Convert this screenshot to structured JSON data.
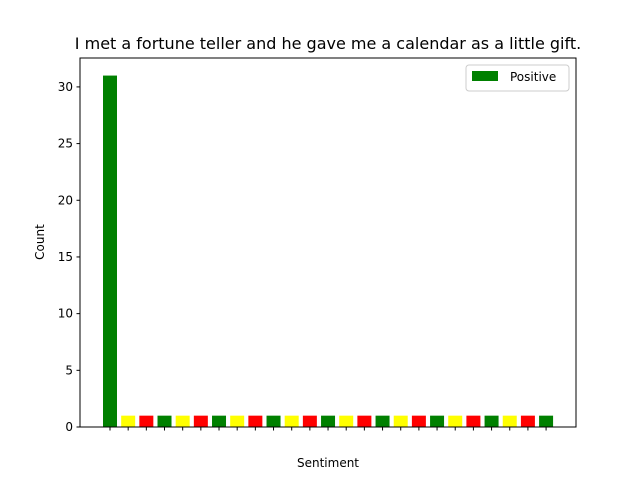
{
  "chart_data": {
    "type": "bar",
    "title": "I met a fortune teller and he gave me a calendar as a little gift.",
    "xlabel": "Sentiment",
    "ylabel": "Count",
    "ylim": [
      0,
      32.55
    ],
    "yticks": [
      0,
      5,
      10,
      15,
      20,
      25,
      30
    ],
    "grid": false,
    "legend": {
      "placement": "top-right",
      "entries": [
        {
          "label": "Positive",
          "color": "#008000"
        }
      ]
    },
    "colors": {
      "green": "#008000",
      "yellow": "#ffff00",
      "red": "#ff0000"
    },
    "bars": [
      {
        "value": 31,
        "color": "green"
      },
      {
        "value": 1,
        "color": "yellow"
      },
      {
        "value": 1,
        "color": "red"
      },
      {
        "value": 1,
        "color": "green"
      },
      {
        "value": 1,
        "color": "yellow"
      },
      {
        "value": 1,
        "color": "red"
      },
      {
        "value": 1,
        "color": "green"
      },
      {
        "value": 1,
        "color": "yellow"
      },
      {
        "value": 1,
        "color": "red"
      },
      {
        "value": 1,
        "color": "green"
      },
      {
        "value": 1,
        "color": "yellow"
      },
      {
        "value": 1,
        "color": "red"
      },
      {
        "value": 1,
        "color": "green"
      },
      {
        "value": 1,
        "color": "yellow"
      },
      {
        "value": 1,
        "color": "red"
      },
      {
        "value": 1,
        "color": "green"
      },
      {
        "value": 1,
        "color": "yellow"
      },
      {
        "value": 1,
        "color": "red"
      },
      {
        "value": 1,
        "color": "green"
      },
      {
        "value": 1,
        "color": "yellow"
      },
      {
        "value": 1,
        "color": "red"
      },
      {
        "value": 1,
        "color": "green"
      },
      {
        "value": 1,
        "color": "yellow"
      },
      {
        "value": 1,
        "color": "red"
      },
      {
        "value": 1,
        "color": "green"
      }
    ]
  }
}
